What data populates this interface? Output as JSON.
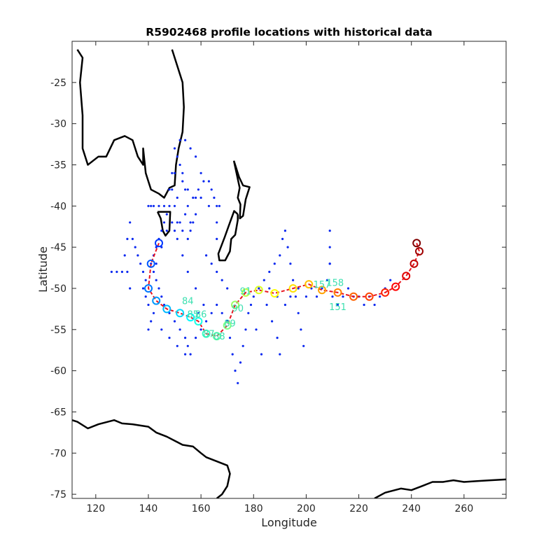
{
  "chart_data": {
    "type": "scatter",
    "title": "R5902468 profile locations with historical data",
    "xlabel": "Longitude",
    "ylabel": "Latitude",
    "xlim": [
      111,
      276
    ],
    "ylim": [
      -75.5,
      -20
    ],
    "xticks": [
      120,
      140,
      160,
      180,
      200,
      220,
      240,
      260
    ],
    "yticks": [
      -25,
      -30,
      -35,
      -40,
      -45,
      -50,
      -55,
      -60,
      -65,
      -70,
      -75
    ],
    "grid": false,
    "colors": {
      "historical": "#0a28f0",
      "track": "#e8141e",
      "coast": "#000000",
      "axis": "#262626"
    },
    "float_track": {
      "colormap": "jet",
      "lon": [
        144,
        141,
        140,
        143,
        147,
        152,
        156,
        159,
        162,
        166,
        170,
        173,
        177,
        182,
        188,
        195,
        201,
        206,
        212,
        218,
        224,
        230,
        234,
        238,
        241,
        243,
        242
      ],
      "lat": [
        -44.5,
        -47,
        -50,
        -51.5,
        -52.5,
        -53,
        -53.5,
        -54,
        -55.5,
        -55.8,
        -54.5,
        -52,
        -50.5,
        -50.2,
        -50.6,
        -50,
        -49.5,
        -50.2,
        -50.5,
        -51,
        -51,
        -50.5,
        -49.8,
        -48.5,
        -47,
        -45.5,
        -44.5
      ]
    },
    "profile_labels": [
      {
        "text": "87",
        "lon": 163,
        "lat": -55.5
      },
      {
        "text": "88",
        "lon": 167,
        "lat": -55.8
      },
      {
        "text": "85",
        "lon": 157,
        "lat": -53.1
      },
      {
        "text": "86",
        "lon": 160,
        "lat": -53.1
      },
      {
        "text": "89",
        "lon": 171,
        "lat": -54.2
      },
      {
        "text": "90",
        "lon": 174,
        "lat": -52.4
      },
      {
        "text": "91",
        "lon": 177,
        "lat": -50.3
      },
      {
        "text": "84",
        "lon": 155,
        "lat": -51.5
      },
      {
        "text": "157",
        "lon": 206,
        "lat": -49.5
      },
      {
        "text": "158",
        "lon": 211,
        "lat": -49.3
      },
      {
        "text": "151",
        "lon": 212,
        "lat": -52.2
      }
    ],
    "historical_points": [
      [
        150,
        -33
      ],
      [
        151,
        -34
      ],
      [
        152,
        -35
      ],
      [
        153,
        -36
      ],
      [
        150,
        -36
      ],
      [
        154,
        -38
      ],
      [
        155,
        -40
      ],
      [
        156,
        -42
      ],
      [
        149,
        -38
      ],
      [
        148,
        -40
      ],
      [
        147,
        -41
      ],
      [
        146,
        -42
      ],
      [
        145,
        -43
      ],
      [
        144,
        -44
      ],
      [
        143,
        -45
      ],
      [
        142,
        -46
      ],
      [
        141,
        -47
      ],
      [
        142,
        -48
      ],
      [
        143,
        -49
      ],
      [
        144,
        -50
      ],
      [
        145,
        -51
      ],
      [
        146,
        -52
      ],
      [
        148,
        -53
      ],
      [
        150,
        -54
      ],
      [
        152,
        -55
      ],
      [
        154,
        -56
      ],
      [
        155,
        -57
      ],
      [
        156,
        -58
      ],
      [
        158,
        -56
      ],
      [
        160,
        -55
      ],
      [
        162,
        -54
      ],
      [
        164,
        -53
      ],
      [
        166,
        -52
      ],
      [
        168,
        -53
      ],
      [
        170,
        -54
      ],
      [
        171,
        -56
      ],
      [
        172,
        -58
      ],
      [
        173,
        -60
      ],
      [
        174,
        -61.5
      ],
      [
        175,
        -59
      ],
      [
        176,
        -57
      ],
      [
        177,
        -55
      ],
      [
        178,
        -53
      ],
      [
        179,
        -52
      ],
      [
        180,
        -51
      ],
      [
        182,
        -50
      ],
      [
        184,
        -49
      ],
      [
        186,
        -48
      ],
      [
        188,
        -47
      ],
      [
        190,
        -46
      ],
      [
        191,
        -44
      ],
      [
        192,
        -43
      ],
      [
        193,
        -45
      ],
      [
        194,
        -47
      ],
      [
        195,
        -49
      ],
      [
        196,
        -51
      ],
      [
        197,
        -53
      ],
      [
        198,
        -55
      ],
      [
        199,
        -57
      ],
      [
        200,
        -51
      ],
      [
        202,
        -50
      ],
      [
        204,
        -51
      ],
      [
        206,
        -50
      ],
      [
        208,
        -49
      ],
      [
        209,
        -47
      ],
      [
        209,
        -45
      ],
      [
        209,
        -43
      ],
      [
        209,
        -47
      ],
      [
        210,
        -51
      ],
      [
        212,
        -52
      ],
      [
        214,
        -51
      ],
      [
        216,
        -50
      ],
      [
        218,
        -51
      ],
      [
        220,
        -51
      ],
      [
        222,
        -52
      ],
      [
        224,
        -51
      ],
      [
        226,
        -52
      ],
      [
        228,
        -51
      ],
      [
        230,
        -50
      ],
      [
        232,
        -49
      ],
      [
        134,
        -44
      ],
      [
        135,
        -45
      ],
      [
        136,
        -46
      ],
      [
        137,
        -47
      ],
      [
        138,
        -48
      ],
      [
        139,
        -49
      ],
      [
        133,
        -50
      ],
      [
        132,
        -48
      ],
      [
        130,
        -48
      ],
      [
        128,
        -48
      ],
      [
        126,
        -48
      ],
      [
        131,
        -46
      ],
      [
        132,
        -44
      ],
      [
        133,
        -42
      ],
      [
        140,
        -40
      ],
      [
        141,
        -40
      ],
      [
        142,
        -40
      ],
      [
        144,
        -40
      ],
      [
        146,
        -40
      ],
      [
        150,
        -40
      ],
      [
        158,
        -39
      ],
      [
        160,
        -39
      ],
      [
        163,
        -40
      ],
      [
        167,
        -40
      ],
      [
        162,
        -46
      ],
      [
        164,
        -47
      ],
      [
        166,
        -48
      ],
      [
        168,
        -49
      ],
      [
        170,
        -50
      ],
      [
        159,
        -53
      ],
      [
        161,
        -52
      ],
      [
        158,
        -50
      ],
      [
        155,
        -48
      ],
      [
        153,
        -46
      ],
      [
        151,
        -44
      ],
      [
        149,
        -42
      ],
      [
        147,
        -43
      ],
      [
        145,
        -45
      ],
      [
        143,
        -47
      ],
      [
        151,
        -42
      ],
      [
        153,
        -43
      ],
      [
        155,
        -44
      ],
      [
        157,
        -42
      ],
      [
        154,
        -41
      ],
      [
        152,
        -42
      ],
      [
        150,
        -43
      ],
      [
        156,
        -43
      ],
      [
        158,
        -41
      ],
      [
        185,
        -52
      ],
      [
        187,
        -54
      ],
      [
        189,
        -56
      ],
      [
        190,
        -58
      ],
      [
        181,
        -55
      ],
      [
        183,
        -58
      ],
      [
        186,
        -50
      ],
      [
        189,
        -51
      ],
      [
        192,
        -52
      ],
      [
        194,
        -51
      ],
      [
        197,
        -50
      ],
      [
        153,
        -37
      ],
      [
        155,
        -38
      ],
      [
        157,
        -39
      ],
      [
        159,
        -38
      ],
      [
        161,
        -37
      ],
      [
        151,
        -39
      ],
      [
        149,
        -36
      ],
      [
        148,
        -38
      ],
      [
        152,
        -32
      ],
      [
        154,
        -32
      ],
      [
        156,
        -33
      ],
      [
        158,
        -34
      ],
      [
        160,
        -36
      ],
      [
        163,
        -37
      ],
      [
        164,
        -38
      ],
      [
        165,
        -39
      ],
      [
        166,
        -40
      ],
      [
        166,
        -42
      ],
      [
        166,
        -44
      ],
      [
        140,
        -55
      ],
      [
        142,
        -53
      ],
      [
        145,
        -55
      ],
      [
        148,
        -56
      ],
      [
        151,
        -57
      ],
      [
        154,
        -58
      ],
      [
        139,
        -51
      ],
      [
        140,
        -52
      ],
      [
        141,
        -54
      ],
      [
        138,
        -50
      ]
    ]
  }
}
